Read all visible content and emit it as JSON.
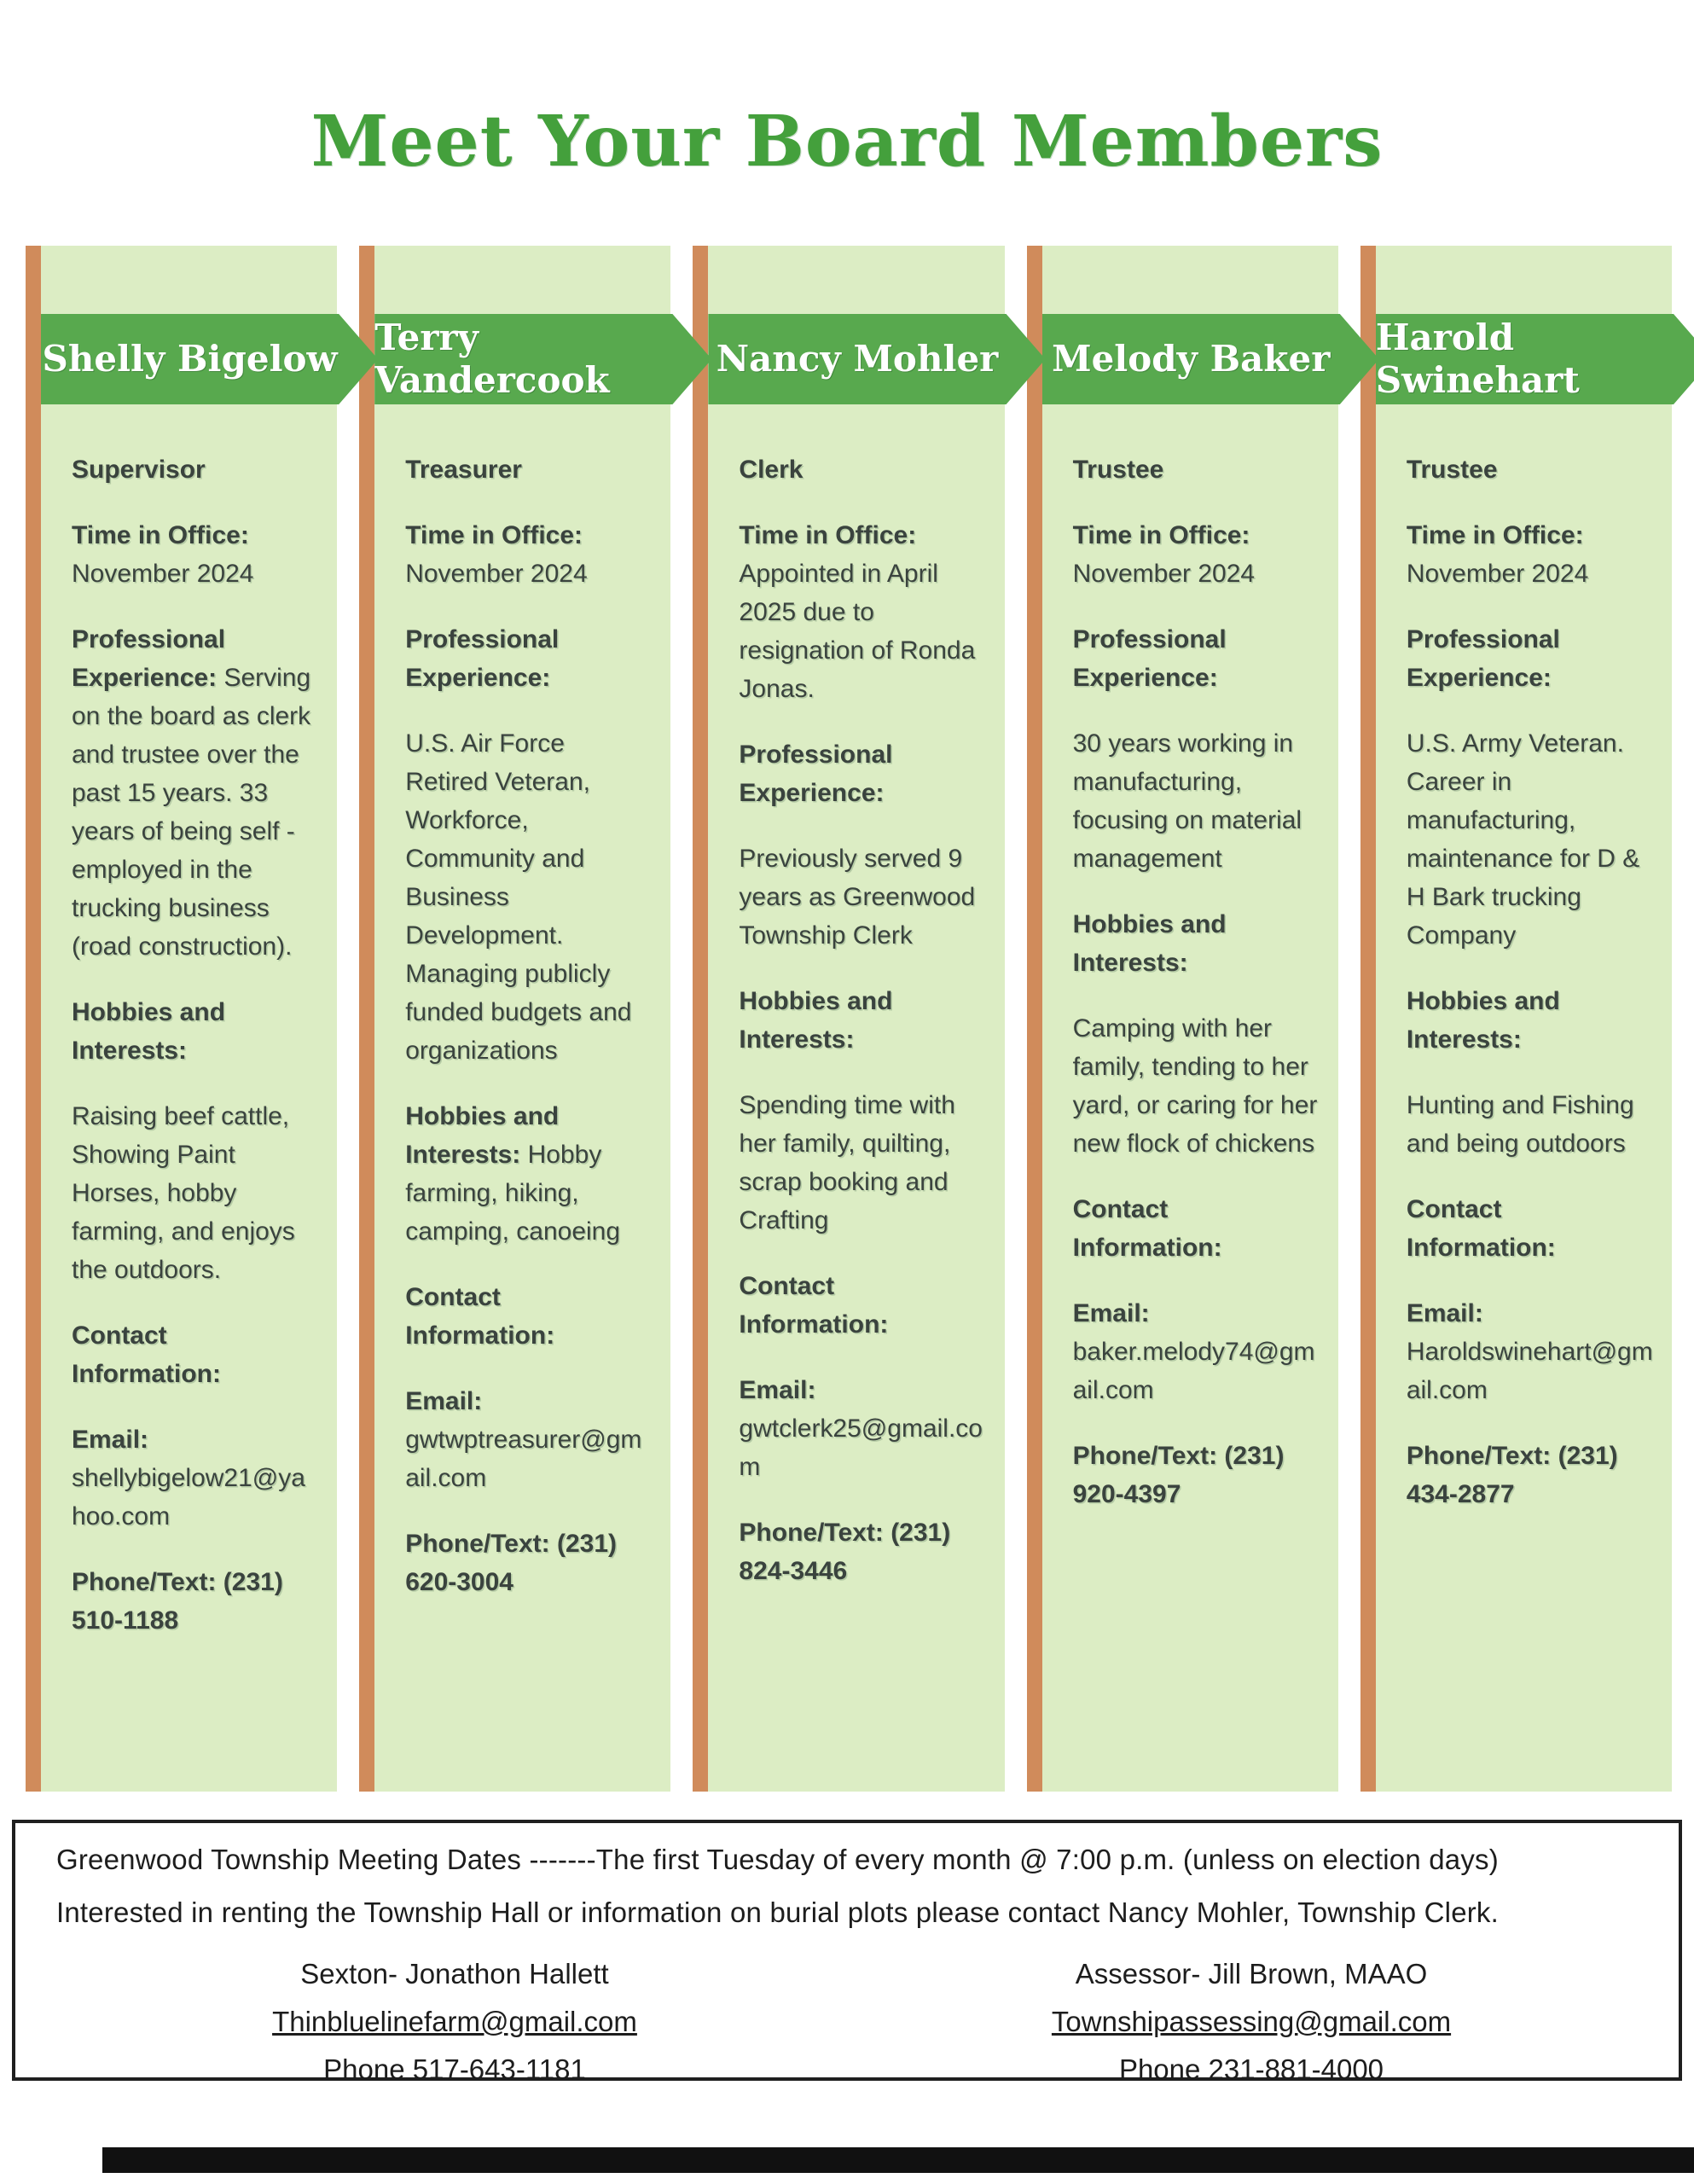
{
  "page": {
    "title": "Meet Your Board Members"
  },
  "colors": {
    "title_green": "#44a03c",
    "banner_green": "#58a94e",
    "panel_green": "#dcedc4",
    "divider_orange": "#d08b5b",
    "body_text": "#3a433e"
  },
  "members": [
    {
      "name": "Shelly Bigelow",
      "role": "Supervisor",
      "paragraphs": [
        {
          "b": "Time in Office:",
          "t": "November 2024"
        },
        {
          "b": "Professional Experience:",
          "t": "Serving on the board as clerk and trustee over the past 15 years. 33 years of being self - employed in the trucking business (road construction)."
        },
        {
          "b": "Hobbies and Interests:",
          "t": ""
        },
        {
          "b": "",
          "t": "Raising beef cattle, Showing Paint Horses, hobby farming, and enjoys the outdoors."
        },
        {
          "b": "Contact Information:",
          "t": ""
        },
        {
          "b": "Email:",
          "t": "shellybigelow21@yahoo.com"
        },
        {
          "b": "Phone/Text: (231) 510-1188",
          "t": ""
        }
      ]
    },
    {
      "name": "Terry Vandercook",
      "role": "Treasurer",
      "paragraphs": [
        {
          "b": "Time in Office:",
          "t": "November 2024"
        },
        {
          "b": "Professional Experience:",
          "t": ""
        },
        {
          "b": "",
          "t": "U.S. Air Force Retired Veteran, Workforce, Community and Business Development. Managing publicly funded budgets and organizations"
        },
        {
          "b": "Hobbies and Interests:",
          "t": "Hobby farming, hiking, camping, canoeing"
        },
        {
          "b": "Contact Information:",
          "t": ""
        },
        {
          "b": "Email:",
          "t": "gwtwptreasurer@gmail.com"
        },
        {
          "b": "Phone/Text: (231) 620-3004",
          "t": ""
        }
      ]
    },
    {
      "name": "Nancy Mohler",
      "role": "Clerk",
      "paragraphs": [
        {
          "b": "Time in Office:",
          "t": "Appointed in April 2025 due to resignation of Ronda Jonas."
        },
        {
          "b": "Professional Experience:",
          "t": ""
        },
        {
          "b": "",
          "t": "Previously served 9 years as Greenwood Township Clerk"
        },
        {
          "b": "Hobbies and Interests:",
          "t": ""
        },
        {
          "b": "",
          "t": "Spending time with her family, quilting, scrap booking and Crafting"
        },
        {
          "b": "Contact Information:",
          "t": ""
        },
        {
          "b": "Email:",
          "t": "gwtclerk25@gmail.com"
        },
        {
          "b": "Phone/Text: (231) 824-3446",
          "t": ""
        }
      ]
    },
    {
      "name": "Melody Baker",
      "role": "Trustee",
      "paragraphs": [
        {
          "b": "Time in Office:",
          "t": "November 2024"
        },
        {
          "b": "Professional Experience:",
          "t": ""
        },
        {
          "b": "",
          "t": "30 years working in manufacturing, focusing on material management"
        },
        {
          "b": "Hobbies and Interests:",
          "t": ""
        },
        {
          "b": "",
          "t": "Camping with her family, tending to her yard, or caring for her new flock of chickens"
        },
        {
          "b": "Contact Information:",
          "t": ""
        },
        {
          "b": "Email:",
          "t": "baker.melody74@gmail.com"
        },
        {
          "b": "Phone/Text: (231) 920-4397",
          "t": ""
        }
      ]
    },
    {
      "name": "Harold Swinehart",
      "role": "Trustee",
      "paragraphs": [
        {
          "b": "Time in Office:",
          "t": "November 2024"
        },
        {
          "b": "Professional Experience:",
          "t": ""
        },
        {
          "b": "",
          "t": "U.S. Army Veteran. Career in manufacturing, maintenance for D & H Bark trucking Company"
        },
        {
          "b": "Hobbies and Interests:",
          "t": ""
        },
        {
          "b": "",
          "t": "Hunting and Fishing and being outdoors"
        },
        {
          "b": "Contact Information:",
          "t": ""
        },
        {
          "b": "Email:",
          "t": "Haroldswinehart@gmail.com"
        },
        {
          "b": "Phone/Text: (231) 434-2877",
          "t": ""
        }
      ]
    }
  ],
  "footer": {
    "meeting_line": "Greenwood Township Meeting Dates -------The first Tuesday of every month @ 7:00 p.m. (unless on election days)",
    "rental_line": "Interested in renting the Township Hall or information on burial plots please contact Nancy Mohler, Township Clerk.",
    "contacts": [
      {
        "title": "Sexton- Jonathon Hallett",
        "email": "Thinbluelinefarm@gmail.com",
        "phone": "Phone 517-643-1181"
      },
      {
        "title": "Assessor- Jill Brown, MAAO",
        "email": "Townshipassessing@gmail.com",
        "phone": "Phone 231-881-4000"
      }
    ]
  }
}
